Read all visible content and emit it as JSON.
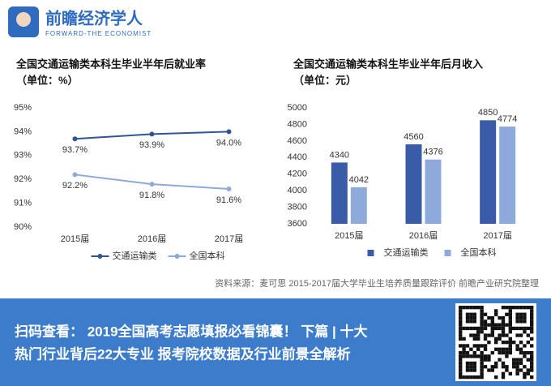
{
  "header": {
    "brand": "前瞻经济学人",
    "tagline": "FORWARD-THE ECONOMIST"
  },
  "chart_data": [
    {
      "type": "line",
      "title": "全国交通运输类本科生毕业半年后就业率",
      "subtitle": "（单位：%）",
      "categories": [
        "2015届",
        "2016届",
        "2017届"
      ],
      "series": [
        {
          "name": "交通运输类",
          "color": "#2f5597",
          "values": [
            93.7,
            93.9,
            94.0
          ],
          "value_labels": [
            "93.7%",
            "93.9%",
            "94.0%"
          ]
        },
        {
          "name": "全国本科",
          "color": "#8eaadb",
          "values": [
            92.2,
            91.8,
            91.6
          ],
          "value_labels": [
            "92.2%",
            "91.8%",
            "91.6%"
          ]
        }
      ],
      "ylim": [
        90,
        95
      ],
      "yticks": [
        {
          "value": 90,
          "label": "90%"
        },
        {
          "value": 91,
          "label": "91%"
        },
        {
          "value": 92,
          "label": "92%"
        },
        {
          "value": 93,
          "label": "93%"
        },
        {
          "value": 94,
          "label": "94%"
        },
        {
          "value": 95,
          "label": "95%"
        }
      ],
      "grid": false,
      "legend": "bottom"
    },
    {
      "type": "bar",
      "title": "全国交通运输类本科生毕业半年后月收入",
      "subtitle": "（单位：元）",
      "categories": [
        "2015届",
        "2016届",
        "2017届"
      ],
      "series": [
        {
          "name": "交通运输类",
          "color": "#3a5ca8",
          "values": [
            4340,
            4560,
            4850
          ]
        },
        {
          "name": "全国本科",
          "color": "#8ea9db",
          "values": [
            4042,
            4376,
            4774
          ]
        }
      ],
      "ylim": [
        3600,
        5000
      ],
      "yticks": [
        3600,
        3800,
        4000,
        4200,
        4400,
        4600,
        4800,
        5000
      ],
      "grid": false,
      "legend": "bottom"
    }
  ],
  "source": "资料来源：麦可思 2015-2017届大学毕业生培养质量跟踪评价 前瞻产业研究院整理",
  "footer": {
    "line1": "扫码查看： 2019全国高考志愿填报必看锦囊！ 下篇 | 十大",
    "line2": "热门行业背后22大专业 报考院校数据及行业前景全解析"
  }
}
